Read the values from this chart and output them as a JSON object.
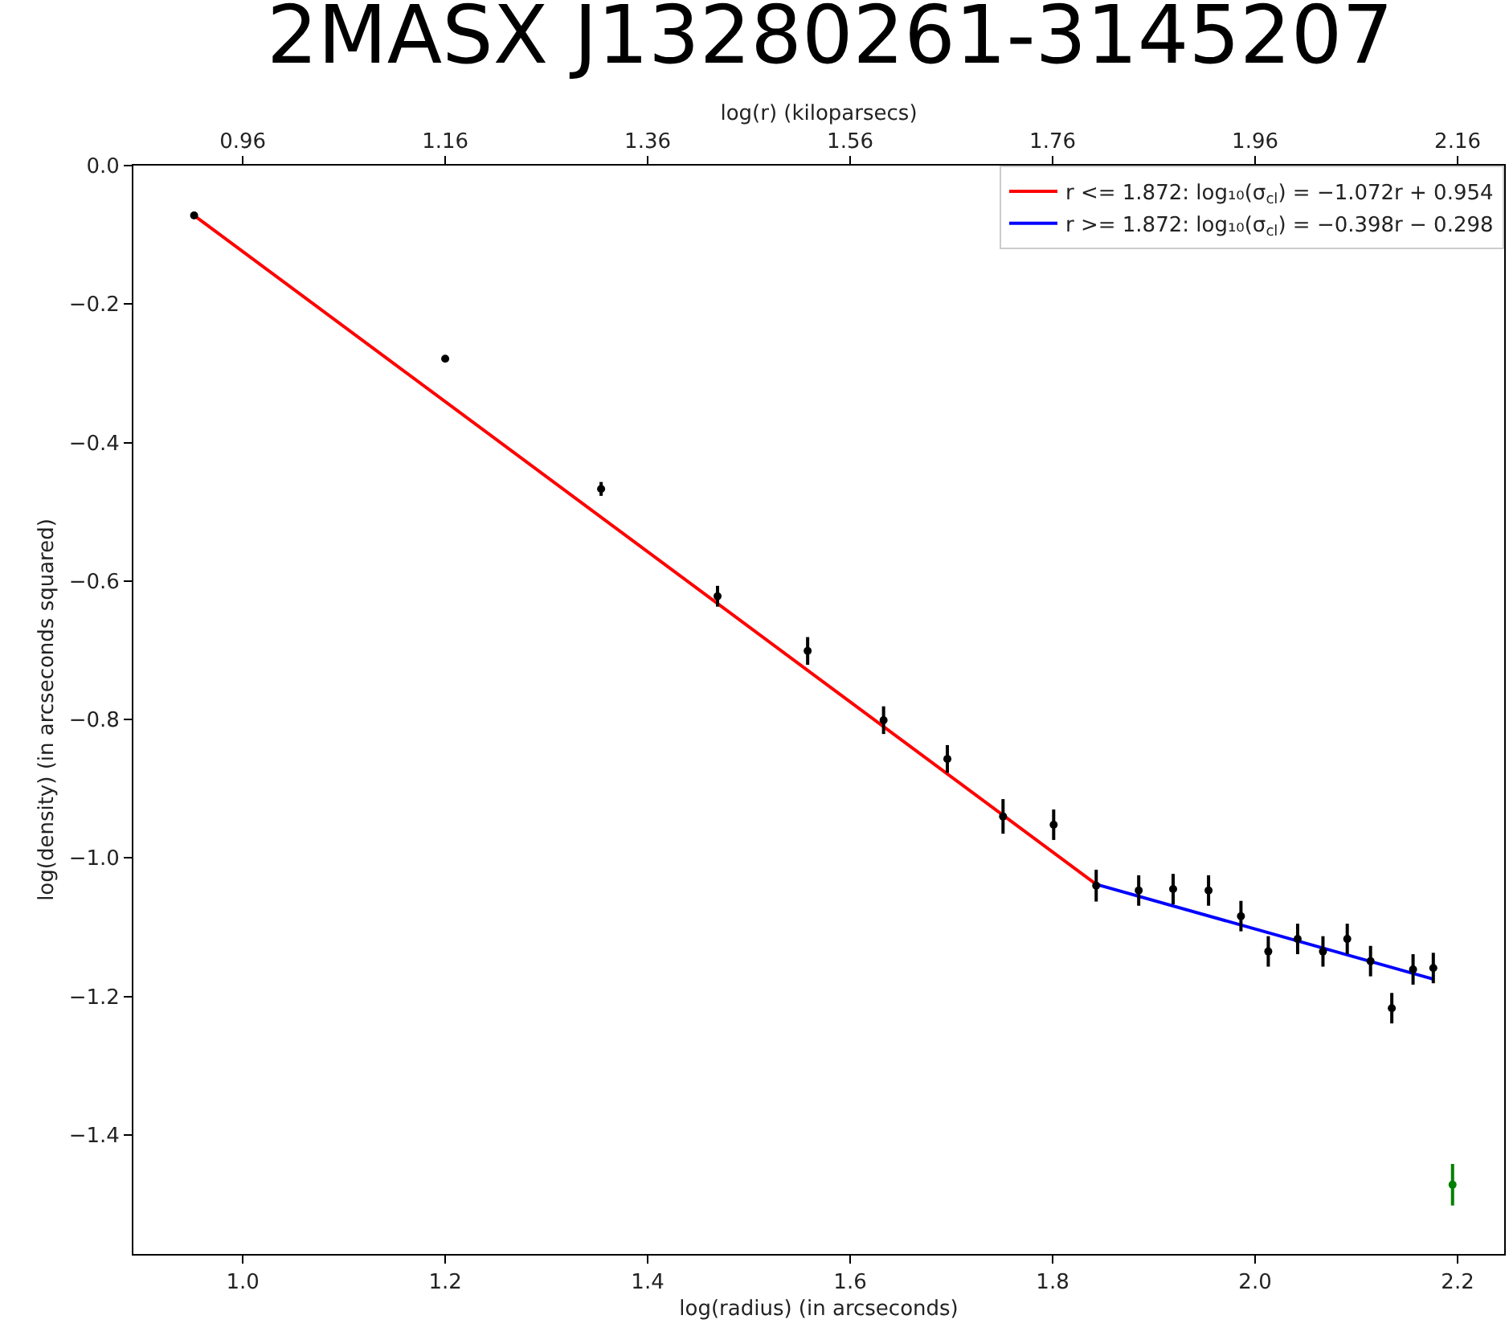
{
  "chart_data": {
    "type": "scatter",
    "title": "2MASX J13280261-3145207",
    "xlabel": "log(radius) (in arcseconds)",
    "ylabel": "log(density) (in arcseconds squared)",
    "x2label": "log(r) (kiloparsecs)",
    "xlim": [
      0.892,
      2.246
    ],
    "xticks": [
      {
        "value": 1.0,
        "label": "1.0"
      },
      1.2,
      1.4,
      1.6,
      1.8,
      {
        "value": 2.0,
        "label": "2.0"
      },
      2.2
    ],
    "x2lim": [
      0.852,
      2.206
    ],
    "x2ticks": [
      0.96,
      1.16,
      1.36,
      1.56,
      1.76,
      1.96,
      2.16
    ],
    "ylim": [
      -1.572,
      0
    ],
    "yticks": [
      {
        "value": 0,
        "label": "0.0"
      },
      {
        "value": -0.2,
        "label": "−0.2"
      },
      {
        "value": -0.4,
        "label": "−0.4"
      },
      {
        "value": -0.6,
        "label": "−0.6"
      },
      {
        "value": -0.8,
        "label": "−0.8"
      },
      {
        "value": -1.0,
        "label": "−1.0"
      },
      {
        "value": -1.2,
        "label": "−1.2"
      },
      {
        "value": -1.4,
        "label": "−1.4"
      }
    ],
    "grid": false,
    "legend": "top right",
    "series": [
      {
        "marker": "circle",
        "color": "#000000",
        "x": [
          0.952,
          1.2,
          1.354,
          1.469,
          1.558,
          1.633,
          1.696,
          1.751,
          1.801,
          1.843,
          1.885,
          1.919,
          1.954,
          1.986,
          2.013,
          2.042,
          2.067,
          2.091,
          2.114,
          2.135,
          2.156,
          2.176
        ],
        "values": [
          -0.072,
          -0.279,
          -0.467,
          -0.622,
          -0.701,
          -0.801,
          -0.857,
          -0.94,
          -0.952,
          -1.04,
          -1.047,
          -1.045,
          -1.047,
          -1.084,
          -1.135,
          -1.117,
          -1.135,
          -1.117,
          -1.149,
          -1.217,
          -1.161,
          -1.159
        ],
        "errors": [
          null,
          null,
          0.01,
          0.015,
          0.02,
          0.02,
          0.02,
          0.025,
          0.022,
          0.023,
          0.022,
          0.022,
          0.022,
          0.022,
          0.022,
          0.022,
          0.022,
          0.022,
          0.022,
          0.022,
          0.022,
          0.022
        ]
      },
      {
        "marker": "circle",
        "color": "#008000",
        "x": [
          2.195
        ],
        "values": [
          -1.472
        ],
        "errors": [
          0.03
        ]
      },
      {
        "type": "line",
        "marker": "none",
        "name": "r <= 1.872: log₁₀(σ$_{cl}$) = −1.072r + 0.954",
        "color": "#ff0000",
        "x": [
          0.952,
          1.843
        ],
        "values": [
          -0.072,
          -1.038
        ]
      },
      {
        "type": "line",
        "marker": "none",
        "name": "r >= 1.872: log₁₀(σ$_{cl}$) = −0.398r − 0.298",
        "color": "#0000ff",
        "x": [
          1.843,
          2.176
        ],
        "values": [
          -1.038,
          -1.175
        ]
      }
    ]
  }
}
